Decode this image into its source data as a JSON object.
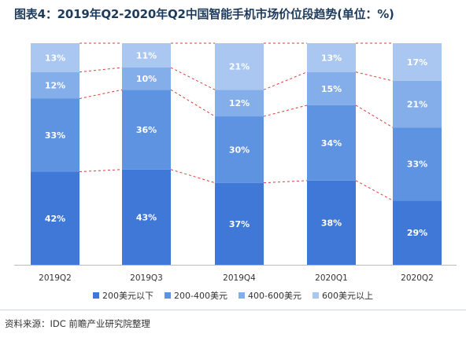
{
  "title": "图表4：2019年Q2-2020年Q2中国智能手机市场价位段趋势(单位：%)",
  "source": "资料来源：IDC 前瞻产业研究院整理",
  "colors": {
    "tier_0_200": "#3f78d6",
    "tier_200_400": "#5e93e2",
    "tier_400_600": "#84aeea",
    "tier_600_plus": "#a9c7f1",
    "connector": "#e03a3a",
    "title": "#1f3b5c",
    "axis": "#bbbbbb"
  },
  "legend": [
    {
      "label": "200美元以下",
      "color_key": "tier_0_200"
    },
    {
      "label": "200-400美元",
      "color_key": "tier_200_400"
    },
    {
      "label": "400-600美元",
      "color_key": "tier_400_600"
    },
    {
      "label": "600美元以上",
      "color_key": "tier_600_plus"
    }
  ],
  "chart_data": {
    "type": "bar",
    "stacked": true,
    "normalized_100": true,
    "categories": [
      "2019Q2",
      "2019Q3",
      "2019Q4",
      "2020Q1",
      "2020Q2"
    ],
    "series": [
      {
        "name": "200美元以下",
        "values": [
          42,
          43,
          37,
          38,
          29
        ],
        "color_key": "tier_0_200"
      },
      {
        "name": "200-400美元",
        "values": [
          33,
          36,
          30,
          34,
          33
        ],
        "color_key": "tier_200_400"
      },
      {
        "name": "400-600美元",
        "values": [
          12,
          10,
          12,
          15,
          21
        ],
        "color_key": "tier_400_600"
      },
      {
        "name": "600美元以上",
        "values": [
          13,
          11,
          21,
          13,
          17
        ],
        "color_key": "tier_600_plus"
      }
    ],
    "data_labels": true,
    "data_label_suffix": "%",
    "connector_lines": "dashed",
    "ylim": [
      0,
      100
    ],
    "legend_position": "bottom",
    "grid": false
  }
}
